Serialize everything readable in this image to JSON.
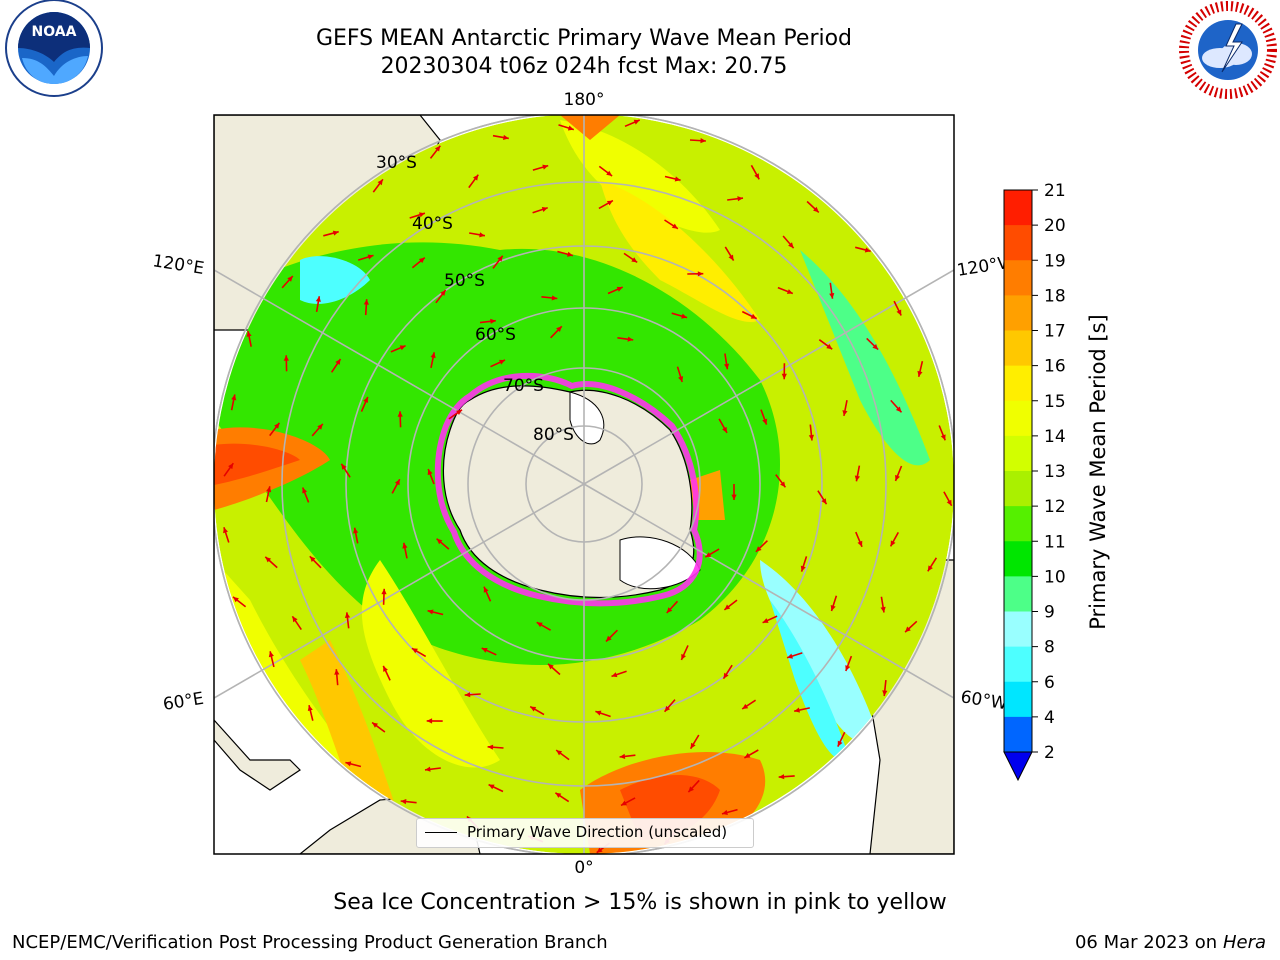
{
  "header": {
    "title_line1": "GEFS MEAN Antarctic Primary Wave Mean Period",
    "title_line2": "20230304 t06z 024h fcst   Max: 20.75"
  },
  "logos": {
    "left": "NOAA",
    "left_ring": "NATIONAL OCEANIC AND ATMOSPHERIC ADMINISTRATION · U.S. DEPARTMENT OF COMMERCE",
    "right_ring": "NATIONAL WEATHER SERVICE"
  },
  "map": {
    "projection": "south polar stereographic",
    "longitude_labels": {
      "top": "180°",
      "bottom": "0°",
      "upper_left": "120°E",
      "lower_left": "60°E",
      "upper_right": "120°W",
      "lower_right": "60°W"
    },
    "latitude_labels": [
      "30°S",
      "40°S",
      "50°S",
      "60°S",
      "70°S",
      "80°S"
    ],
    "legend_label": "Primary Wave Direction (unscaled)",
    "colors": {
      "land": "#efecdc",
      "sea_ice_edge": "#ff33ee",
      "arrows": "#e60000"
    }
  },
  "colorbar": {
    "title": "Primary Wave Mean Period [s]",
    "ticks": [
      "2",
      "4",
      "6",
      "8",
      "9",
      "10",
      "11",
      "12",
      "13",
      "14",
      "15",
      "16",
      "17",
      "18",
      "19",
      "20",
      "21"
    ],
    "colors": [
      "#0066ff",
      "#00e6ff",
      "#4dffff",
      "#99ffff",
      "#4dff88",
      "#00e600",
      "#55f000",
      "#aaf000",
      "#d2ff00",
      "#f0ff00",
      "#ffee00",
      "#ffc800",
      "#ffa000",
      "#ff7d00",
      "#ff4c00",
      "#ff1e00"
    ],
    "extend_min_color": "#0000ee"
  },
  "footer": {
    "note": "Sea Ice Concentration > 15% is shown in pink to yellow",
    "credit": "NCEP/EMC/Verification Post Processing Product Generation Branch",
    "date": "06 Mar 2023 on",
    "machine": "Hera"
  }
}
